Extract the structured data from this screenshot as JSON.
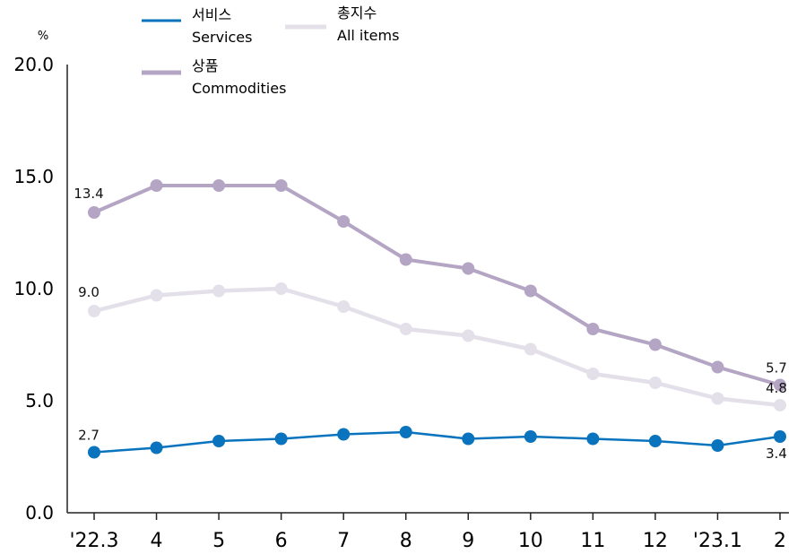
{
  "chart_data": {
    "type": "line",
    "ylabel": "%",
    "ylim": [
      0,
      20
    ],
    "yticks": [
      "0.0",
      "5.0",
      "10.0",
      "15.0",
      "20.0"
    ],
    "categories": [
      "'22.3",
      "4",
      "5",
      "6",
      "7",
      "8",
      "9",
      "10",
      "11",
      "12",
      "'23.1",
      "2"
    ],
    "legend_position": "top-left",
    "series": [
      {
        "key": "services",
        "name_ko": "서비스",
        "name_en": "Services",
        "color": "#0a73bd",
        "values": [
          2.7,
          2.9,
          3.2,
          3.3,
          3.5,
          3.6,
          3.3,
          3.4,
          3.3,
          3.2,
          3.0,
          3.4
        ],
        "labels": [
          {
            "index": 0,
            "text": "2.7"
          },
          {
            "index": 11,
            "text": "3.4"
          }
        ]
      },
      {
        "key": "all_items",
        "name_ko": "총지수",
        "name_en": "All items",
        "color": "#e3e0ea",
        "values": [
          9.0,
          9.7,
          9.9,
          10.0,
          9.2,
          8.2,
          7.9,
          7.3,
          6.2,
          5.8,
          5.1,
          4.8
        ],
        "labels": [
          {
            "index": 0,
            "text": "9.0"
          },
          {
            "index": 11,
            "text": "4.8"
          }
        ]
      },
      {
        "key": "commodities",
        "name_ko": "상품",
        "name_en": "Commodities",
        "color": "#b3a5c3",
        "values": [
          13.4,
          14.6,
          14.6,
          14.6,
          13.0,
          11.3,
          10.9,
          9.9,
          8.2,
          7.5,
          6.5,
          5.7
        ],
        "labels": [
          {
            "index": 0,
            "text": "13.4"
          },
          {
            "index": 11,
            "text": "5.7"
          }
        ]
      }
    ]
  }
}
